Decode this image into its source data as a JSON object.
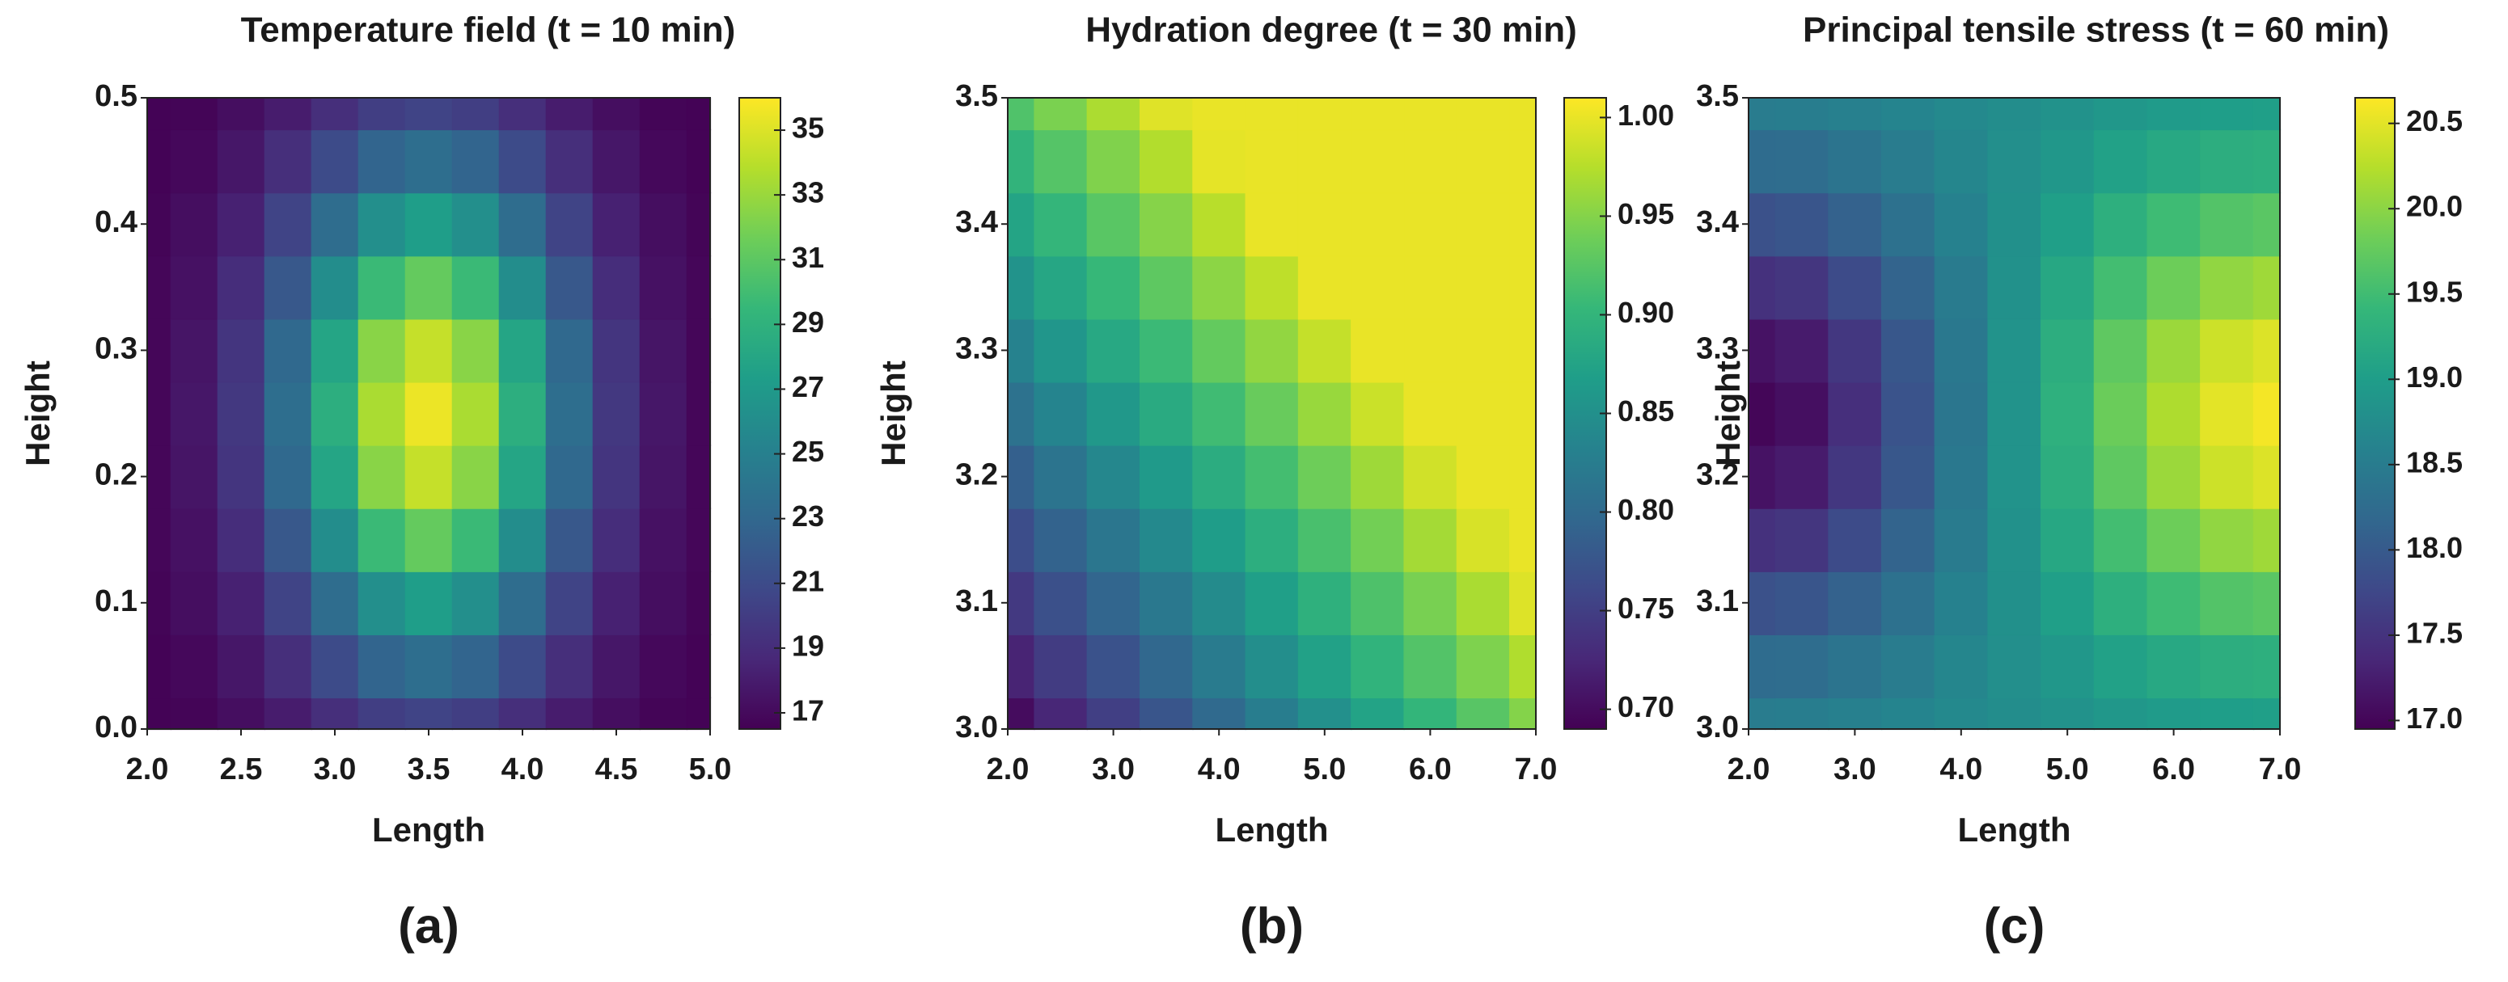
{
  "chart_data": [
    {
      "type": "contour",
      "title": "Temperature field (t = 10 min)",
      "xlabel": "Length",
      "ylabel": "Height",
      "panel_label": "(a)",
      "x": [
        2.0,
        2.25,
        2.5,
        2.75,
        3.0,
        3.25,
        3.5,
        3.75,
        4.0,
        4.25,
        4.5,
        4.75,
        5.0
      ],
      "y": [
        0.0,
        0.05,
        0.1,
        0.15,
        0.2,
        0.25,
        0.3,
        0.35,
        0.4,
        0.45,
        0.5
      ],
      "z": [
        [
          16.6,
          16.7,
          17.2,
          18.0,
          19.1,
          20.1,
          20.5,
          20.1,
          19.1,
          18.0,
          17.2,
          16.7,
          16.6
        ],
        [
          16.6,
          16.9,
          17.7,
          19.1,
          21.0,
          22.8,
          23.5,
          22.8,
          21.0,
          19.1,
          17.7,
          16.9,
          16.6
        ],
        [
          16.7,
          17.2,
          18.3,
          20.5,
          23.4,
          26.2,
          27.3,
          26.2,
          23.4,
          20.5,
          18.3,
          17.2,
          16.7
        ],
        [
          16.8,
          17.4,
          19.0,
          21.9,
          26.0,
          29.7,
          31.3,
          29.7,
          26.0,
          21.9,
          19.0,
          17.4,
          16.8
        ],
        [
          16.8,
          17.6,
          19.5,
          23.1,
          27.9,
          32.5,
          34.3,
          32.5,
          27.9,
          23.1,
          19.5,
          17.6,
          16.8
        ],
        [
          16.8,
          17.7,
          19.7,
          23.5,
          28.7,
          33.5,
          35.5,
          33.5,
          28.7,
          23.5,
          19.7,
          17.7,
          16.8
        ],
        [
          16.8,
          17.6,
          19.5,
          23.1,
          27.9,
          32.5,
          34.3,
          32.5,
          27.9,
          23.1,
          19.5,
          17.6,
          16.8
        ],
        [
          16.8,
          17.4,
          19.0,
          21.9,
          26.0,
          29.7,
          31.3,
          29.7,
          26.0,
          21.9,
          19.0,
          17.4,
          16.8
        ],
        [
          16.7,
          17.2,
          18.3,
          20.5,
          23.4,
          26.2,
          27.3,
          26.2,
          23.4,
          20.5,
          18.3,
          17.2,
          16.7
        ],
        [
          16.6,
          16.9,
          17.7,
          19.1,
          21.0,
          22.8,
          23.5,
          22.8,
          21.0,
          19.1,
          17.7,
          16.9,
          16.6
        ],
        [
          16.6,
          16.7,
          17.2,
          18.0,
          19.1,
          20.1,
          20.5,
          20.1,
          19.1,
          18.0,
          17.2,
          16.7,
          16.6
        ]
      ],
      "xlim": [
        2.0,
        5.0
      ],
      "ylim": [
        0.0,
        0.5
      ],
      "xticks": [
        {
          "value": 2.0,
          "label": "2.0"
        },
        2.5,
        {
          "value": 3.0,
          "label": "3.0"
        },
        3.5,
        {
          "value": 4.0,
          "label": "4.0"
        },
        4.5,
        {
          "value": 5.0,
          "label": "5.0"
        }
      ],
      "yticks": [
        {
          "value": 0.0,
          "label": "0.0"
        },
        0.1,
        0.2,
        0.3,
        0.4,
        0.5
      ],
      "clim": [
        16.5,
        36
      ],
      "cticks": [
        17,
        19,
        21,
        23,
        25,
        27,
        29,
        31,
        33,
        35
      ],
      "colormap": [
        "#440154",
        "#482878",
        "#3e4989",
        "#31688e",
        "#26828e",
        "#1f9e89",
        "#35b779",
        "#6ece58",
        "#b5de2b",
        "#fde725"
      ]
    },
    {
      "type": "contour",
      "title": "Hydration degree (t = 30 min)",
      "xlabel": "Length",
      "ylabel": "Height",
      "panel_label": "(b)",
      "x": [
        2.0,
        2.5,
        3.0,
        3.5,
        4.0,
        4.5,
        5.0,
        5.5,
        6.0,
        6.5,
        7.0
      ],
      "y": [
        3.0,
        3.05,
        3.1,
        3.15,
        3.2,
        3.25,
        3.3,
        3.35,
        3.4,
        3.45,
        3.5
      ],
      "z": [
        [
          0.7,
          0.725,
          0.75,
          0.775,
          0.8,
          0.825,
          0.85,
          0.875,
          0.9,
          0.925,
          0.95
        ],
        [
          0.722,
          0.747,
          0.772,
          0.797,
          0.822,
          0.847,
          0.872,
          0.897,
          0.922,
          0.947,
          0.972
        ],
        [
          0.744,
          0.769,
          0.794,
          0.819,
          0.844,
          0.869,
          0.894,
          0.919,
          0.944,
          0.969,
          0.994
        ],
        [
          0.766,
          0.791,
          0.816,
          0.841,
          0.866,
          0.891,
          0.916,
          0.941,
          0.966,
          0.991,
          1.0
        ],
        [
          0.788,
          0.813,
          0.838,
          0.863,
          0.888,
          0.913,
          0.938,
          0.963,
          0.988,
          1.0,
          1.0
        ],
        [
          0.81,
          0.835,
          0.86,
          0.885,
          0.91,
          0.935,
          0.96,
          0.985,
          1.0,
          1.0,
          1.0
        ],
        [
          0.832,
          0.857,
          0.882,
          0.907,
          0.932,
          0.957,
          0.982,
          1.0,
          1.0,
          1.0,
          1.0
        ],
        [
          0.854,
          0.879,
          0.904,
          0.929,
          0.954,
          0.979,
          1.0,
          1.0,
          1.0,
          1.0,
          1.0
        ],
        [
          0.876,
          0.901,
          0.926,
          0.951,
          0.976,
          1.0,
          1.0,
          1.0,
          1.0,
          1.0,
          1.0
        ],
        [
          0.898,
          0.923,
          0.948,
          0.973,
          0.998,
          1.0,
          1.0,
          1.0,
          1.0,
          1.0,
          1.0
        ],
        [
          0.92,
          0.945,
          0.97,
          0.995,
          1.0,
          1.0,
          1.0,
          1.0,
          1.0,
          1.0,
          1.0
        ]
      ],
      "xlim": [
        2.0,
        7.0
      ],
      "ylim": [
        3.0,
        3.5
      ],
      "xticks": [
        {
          "value": 2.0,
          "label": "2.0"
        },
        {
          "value": 3.0,
          "label": "3.0"
        },
        {
          "value": 4.0,
          "label": "4.0"
        },
        {
          "value": 5.0,
          "label": "5.0"
        },
        {
          "value": 6.0,
          "label": "6.0"
        },
        {
          "value": 7.0,
          "label": "7.0"
        }
      ],
      "yticks": [
        {
          "value": 3.0,
          "label": "3.0"
        },
        3.1,
        3.2,
        3.3,
        3.4,
        3.5
      ],
      "clim": [
        0.69,
        1.01
      ],
      "cticks": [
        {
          "value": 0.7,
          "label": "0.70"
        },
        0.75,
        {
          "value": 0.8,
          "label": "0.80"
        },
        0.85,
        {
          "value": 0.9,
          "label": "0.90"
        },
        0.95,
        {
          "value": 1.0,
          "label": "1.00"
        }
      ],
      "colormap": [
        "#440154",
        "#482878",
        "#3e4989",
        "#31688e",
        "#26828e",
        "#1f9e89",
        "#35b779",
        "#6ece58",
        "#b5de2b",
        "#fde725"
      ]
    },
    {
      "type": "contour",
      "title": "Principal tensile stress (t = 60 min)",
      "xlabel": "Length",
      "ylabel": "Height",
      "panel_label": "(c)",
      "x": [
        2.0,
        2.5,
        3.0,
        3.5,
        4.0,
        4.5,
        5.0,
        5.5,
        6.0,
        6.5,
        7.0
      ],
      "y": [
        3.0,
        3.05,
        3.1,
        3.15,
        3.2,
        3.25,
        3.3,
        3.35,
        3.4,
        3.45,
        3.5
      ],
      "z": [
        [
          18.5,
          18.51,
          18.56,
          18.63,
          18.7,
          18.76,
          18.83,
          18.9,
          18.96,
          19.0,
          19.02
        ],
        [
          18.24,
          18.27,
          18.37,
          18.5,
          18.65,
          18.78,
          18.91,
          19.06,
          19.17,
          19.26,
          19.29
        ],
        [
          17.88,
          17.93,
          18.1,
          18.33,
          18.58,
          18.8,
          19.03,
          19.28,
          19.48,
          19.63,
          19.68
        ],
        [
          17.47,
          17.54,
          17.8,
          18.13,
          18.49,
          18.82,
          19.15,
          19.52,
          19.81,
          20.03,
          20.11
        ],
        [
          17.13,
          17.22,
          17.55,
          17.96,
          18.43,
          18.84,
          19.26,
          19.72,
          20.09,
          20.37,
          20.46
        ],
        [
          17.0,
          17.1,
          17.45,
          17.9,
          18.4,
          18.85,
          19.3,
          19.8,
          20.2,
          20.5,
          20.6
        ],
        [
          17.13,
          17.22,
          17.55,
          17.96,
          18.43,
          18.84,
          19.26,
          19.72,
          20.09,
          20.37,
          20.46
        ],
        [
          17.47,
          17.54,
          17.8,
          18.13,
          18.49,
          18.82,
          19.15,
          19.52,
          19.81,
          20.03,
          20.11
        ],
        [
          17.88,
          17.93,
          18.1,
          18.33,
          18.58,
          18.8,
          19.03,
          19.28,
          19.48,
          19.63,
          19.68
        ],
        [
          18.24,
          18.27,
          18.37,
          18.5,
          18.65,
          18.78,
          18.91,
          19.06,
          19.17,
          19.26,
          19.29
        ],
        [
          18.5,
          18.51,
          18.56,
          18.63,
          18.7,
          18.76,
          18.83,
          18.9,
          18.96,
          19.0,
          19.02
        ]
      ],
      "xlim": [
        2.0,
        7.0
      ],
      "ylim": [
        3.0,
        3.5
      ],
      "xticks": [
        {
          "value": 2.0,
          "label": "2.0"
        },
        {
          "value": 3.0,
          "label": "3.0"
        },
        {
          "value": 4.0,
          "label": "4.0"
        },
        {
          "value": 5.0,
          "label": "5.0"
        },
        {
          "value": 6.0,
          "label": "6.0"
        },
        {
          "value": 7.0,
          "label": "7.0"
        }
      ],
      "yticks": [
        {
          "value": 3.0,
          "label": "3.0"
        },
        3.1,
        3.2,
        3.3,
        3.4,
        3.5
      ],
      "clim": [
        16.95,
        20.65
      ],
      "cticks": [
        {
          "value": 17.0,
          "label": "17.0"
        },
        17.5,
        {
          "value": 18.0,
          "label": "18.0"
        },
        18.5,
        {
          "value": 19.0,
          "label": "19.0"
        },
        19.5,
        {
          "value": 20.0,
          "label": "20.0"
        },
        20.5
      ],
      "colormap": [
        "#440154",
        "#482878",
        "#3e4989",
        "#31688e",
        "#26828e",
        "#1f9e89",
        "#35b779",
        "#6ece58",
        "#b5de2b",
        "#fde725"
      ]
    }
  ]
}
